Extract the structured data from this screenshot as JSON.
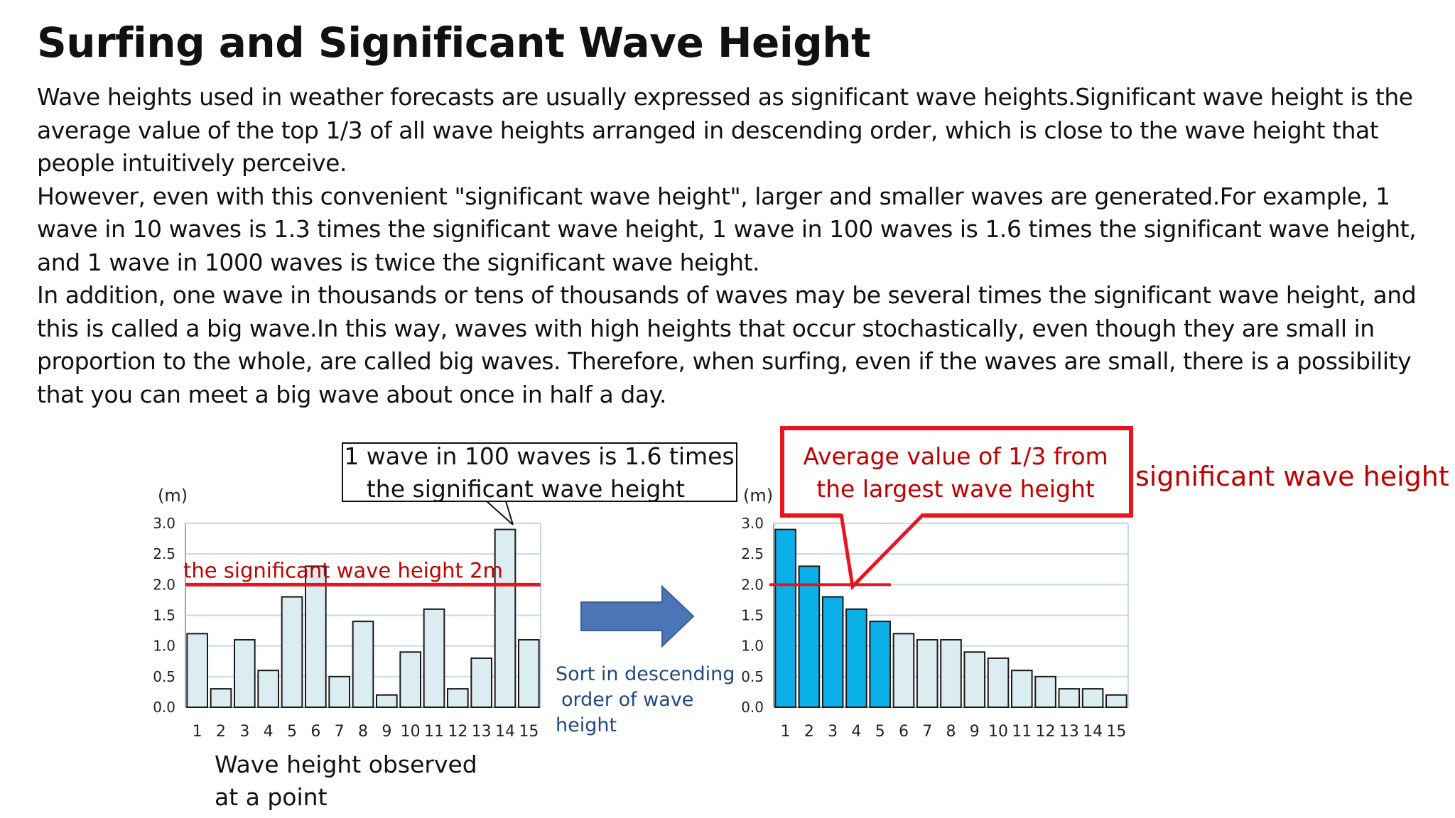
{
  "title": "Surfing and Significant Wave Height",
  "paragraphs": [
    "Wave heights used in weather forecasts are usually expressed as significant wave heights.Significant wave height is the average value of the top 1/3 of all wave heights arranged in descending order, which is close to the wave height that people intuitively perceive.",
    "However, even with this convenient \"significant wave height\", larger and smaller waves are generated.For example, 1 wave in 10 waves is 1.3 times the significant wave height, 1 wave in 100 waves is 1.6 times the significant wave height, and 1 wave in 1000 waves is twice the significant wave height.",
    "In addition, one wave in thousands or tens of thousands of waves may be several times the significant wave height, and this is called a big wave.In this way, waves with high heights that occur stochastically, even though they are small in proportion to the whole, are called big waves. Therefore, when surfing, even if the waves are small, there is a possibility that you can meet a big wave about once in half a day."
  ],
  "chart_data": [
    {
      "type": "bar",
      "unit_label": "(m)",
      "categories": [
        "1",
        "2",
        "3",
        "4",
        "5",
        "6",
        "7",
        "8",
        "9",
        "10",
        "11",
        "12",
        "13",
        "14",
        "15"
      ],
      "values": [
        1.2,
        0.3,
        1.1,
        0.6,
        1.8,
        2.3,
        0.5,
        1.4,
        0.2,
        0.9,
        1.6,
        0.3,
        0.8,
        2.9,
        1.1
      ],
      "yticks": [
        "0.0",
        "0.5",
        "1.0",
        "1.5",
        "2.0",
        "2.5",
        "3.0"
      ],
      "ylim": [
        0,
        3.0
      ],
      "grid": true,
      "reference_line": {
        "value": 2.0,
        "label": "the significant wave height 2m"
      },
      "callout": "1 wave in 100 waves is 1.6 times the significant wave height",
      "caption": [
        "Wave height observed",
        "at a point"
      ]
    },
    {
      "type": "bar",
      "unit_label": "(m)",
      "categories": [
        "1",
        "2",
        "3",
        "4",
        "5",
        "6",
        "7",
        "8",
        "9",
        "10",
        "11",
        "12",
        "13",
        "14",
        "15"
      ],
      "values": [
        2.9,
        2.3,
        1.8,
        1.6,
        1.4,
        1.2,
        1.1,
        1.1,
        0.9,
        0.8,
        0.6,
        0.5,
        0.3,
        0.3,
        0.2
      ],
      "highlighted_top": 5,
      "yticks": [
        "0.0",
        "0.5",
        "1.0",
        "1.5",
        "2.0",
        "2.5",
        "3.0"
      ],
      "ylim": [
        0,
        3.0
      ],
      "grid": true,
      "reference_line": {
        "value": 2.0
      },
      "callout": "Average value of 1/3 from the largest wave height",
      "side_label": "significant wave height"
    }
  ],
  "arrow_label": [
    "Sort in descending",
    "order of wave",
    "height"
  ],
  "colors": {
    "bar_light": "#dcedf1",
    "bar_highlight": "#0bb0e8",
    "red": "#e8141e",
    "dark_red": "#c00000",
    "arrow_fill": "#4a76b8",
    "arrow_stroke": "#3a5f96",
    "blue_text": "#1f497d",
    "grid": "#c5d9ea"
  }
}
